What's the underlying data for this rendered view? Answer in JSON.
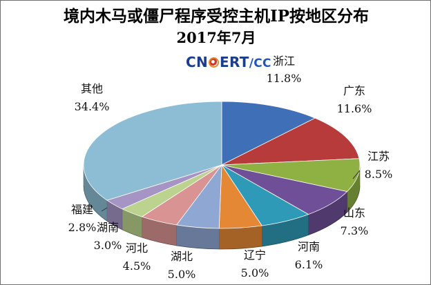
{
  "chart_data": {
    "type": "pie",
    "title": "境内木马或僵尸程序受控主机IP按地区分布",
    "subtitle": "2017年7月",
    "logo_text": "CNCERT/CC",
    "slices": [
      {
        "name": "浙江",
        "value": 11.8,
        "label": "11.8%",
        "color": "#3f6fb7"
      },
      {
        "name": "广东",
        "value": 11.6,
        "label": "11.6%",
        "color": "#b83b3b"
      },
      {
        "name": "江苏",
        "value": 8.5,
        "label": "8.5%",
        "color": "#8fb144"
      },
      {
        "name": "山东",
        "value": 7.3,
        "label": "7.3%",
        "color": "#6f4f98"
      },
      {
        "name": "河南",
        "value": 6.1,
        "label": "6.1%",
        "color": "#2f9ab8"
      },
      {
        "name": "辽宁",
        "value": 5.0,
        "label": "5.0%",
        "color": "#e58836"
      },
      {
        "name": "湖北",
        "value": 5.0,
        "label": "5.0%",
        "color": "#8fa7d3"
      },
      {
        "name": "河北",
        "value": 4.5,
        "label": "4.5%",
        "color": "#d89392"
      },
      {
        "name": "湖南",
        "value": 3.0,
        "label": "3.0%",
        "color": "#bcd38f"
      },
      {
        "name": "福建",
        "value": 2.8,
        "label": "2.8%",
        "color": "#a594c4"
      },
      {
        "name": "其他",
        "value": 34.4,
        "label": "34.4%",
        "color": "#8cbdd4"
      }
    ]
  }
}
